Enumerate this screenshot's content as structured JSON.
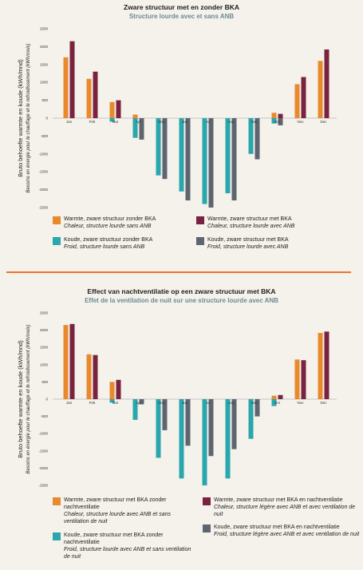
{
  "chart_data": [
    {
      "type": "bar",
      "title": "Zware structuur met en zonder BKA",
      "subtitle": "Structure lourde avec et sans ANB",
      "ylabel": "Bruto behoefte warmte en koude (kWh/mnd)",
      "ylabel_fr": "Besoins en énergie pour le chauffage et le refroidissement (kWh/mois)",
      "ylim": [
        -2500,
        2500
      ],
      "yticks": [
        2500,
        2000,
        1500,
        1000,
        500,
        0,
        -500,
        -1000,
        -1500,
        -2000,
        -2500
      ],
      "categories": [
        "Jan",
        "Feb",
        "Mar",
        "Apr",
        "May",
        "Jun",
        "Jul",
        "Aug",
        "Sep",
        "Oct",
        "Nov",
        "Dec"
      ],
      "grid": false,
      "legend_position": "bottom",
      "series": [
        {
          "label": "Warmte, zware structuur zonder BKA",
          "label_fr": "Chaleur, structure lourde sans ANB",
          "color": "#e8892e",
          "values": [
            1700,
            1100,
            450,
            100,
            0,
            0,
            0,
            0,
            0,
            150,
            950,
            1600
          ]
        },
        {
          "label": "Warmte, zware structuur met BKA",
          "label_fr": "Chaleur, structure  lourde avec ANB",
          "color": "#7a2340",
          "values": [
            2150,
            1300,
            500,
            0,
            0,
            0,
            0,
            0,
            0,
            120,
            1150,
            1920
          ]
        },
        {
          "label": "Koude, zware structuur zonder BKA",
          "label_fr": "Froid, structure lourde sans ANB",
          "color": "#2aa6ad",
          "values": [
            0,
            0,
            -100,
            -550,
            -1600,
            -2050,
            -2400,
            -2100,
            -1000,
            -150,
            0,
            0
          ]
        },
        {
          "label": "Koude, zware structuur met BKA",
          "label_fr": "Froid, structure lourde avec ANB",
          "color": "#5e6470",
          "values": [
            0,
            0,
            0,
            -600,
            -1700,
            -2300,
            -2500,
            -2300,
            -1150,
            -200,
            0,
            0
          ]
        }
      ]
    },
    {
      "type": "bar",
      "title": "Effect van nachtventilatie op een zware structuur met BKA",
      "subtitle": "Effet de la ventilation de nuit sur une structure lourde avec ANB",
      "ylabel": "Bruto behoefte warmte en koude (kWh/mnd)",
      "ylabel_fr": "Besoins en énergie pour le chauffage et le refroidissement (kWh/mois)",
      "ylim": [
        -2500,
        2500
      ],
      "yticks": [
        2500,
        2000,
        1500,
        1000,
        500,
        0,
        -500,
        -1000,
        -1500,
        -2000,
        -2500
      ],
      "categories": [
        "Jan",
        "Feb",
        "Mar",
        "Apr",
        "May",
        "Jun",
        "Jul",
        "Aug",
        "Sep",
        "Oct",
        "Nov",
        "Dec"
      ],
      "grid": false,
      "legend_position": "bottom",
      "series": [
        {
          "label": "Warmte, zware structuur met BKA zonder nachtventilatie",
          "label_fr": "Chaleur, structure lourde avec ANB et sans ventilation de nuit",
          "color": "#e8892e",
          "values": [
            2150,
            1300,
            500,
            0,
            0,
            0,
            0,
            0,
            0,
            100,
            1150,
            1920
          ]
        },
        {
          "label": "Warmte,  zware structuur met BKA en nachtventilatie",
          "label_fr": "Chaleur, structure légère avec ANB et avec ventilation de nuit",
          "color": "#7a2340",
          "values": [
            2180,
            1280,
            560,
            0,
            0,
            0,
            0,
            0,
            0,
            120,
            1130,
            1960
          ]
        },
        {
          "label": "Koude, zware structuur  met BKA zonder nachtventilatie",
          "label_fr": "Froid, structure lourde avec ANB et sans ventilation de nuit",
          "color": "#2aa6ad",
          "values": [
            0,
            0,
            -100,
            -600,
            -1700,
            -2300,
            -2500,
            -2300,
            -1150,
            -200,
            0,
            0
          ]
        },
        {
          "label": "Koude,  zware structuur met BKA en nachtventilatie",
          "label_fr": "Froid, structure légère avec ANB et avec ventilation de nuit",
          "color": "#5e6470",
          "values": [
            0,
            0,
            0,
            -150,
            -900,
            -1350,
            -1650,
            -1450,
            -500,
            0,
            0,
            0
          ]
        }
      ]
    }
  ]
}
